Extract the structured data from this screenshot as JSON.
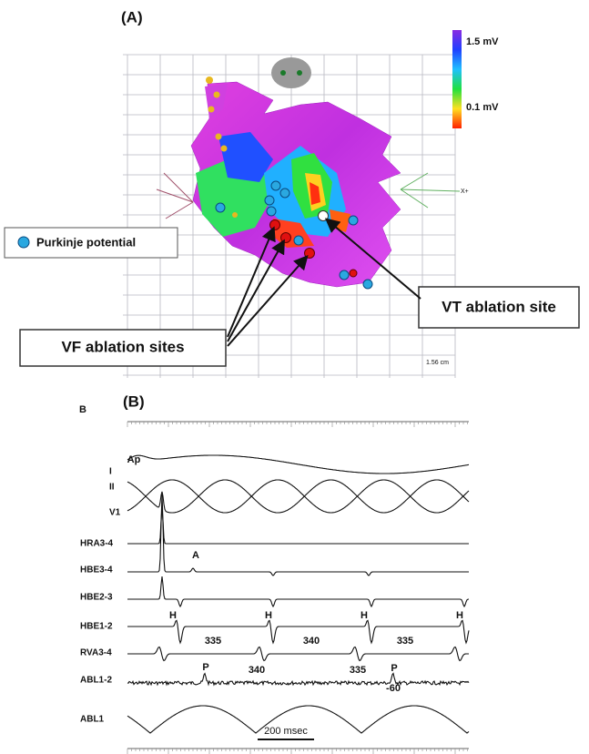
{
  "panel_a": {
    "label": "(A)",
    "colorbar": {
      "max": "1.5 mV",
      "min": "0.1 mV"
    },
    "legend": "Purkinje potential",
    "callouts": [
      "VT ablation site",
      "VF ablation sites"
    ],
    "scale": "1.56 cm",
    "axis": "X+"
  },
  "panel_b": {
    "side_label": "B",
    "label": "(B)",
    "channels": [
      "I",
      "II",
      "V1",
      "HRA3-4",
      "HBE3-4",
      "HBE2-3",
      "HBE1-2",
      "RVA3-4",
      "ABL1-2",
      "ABL1"
    ],
    "annotations": [
      "Ap",
      "A",
      "H",
      "H",
      "H",
      "H",
      "335",
      "340",
      "335",
      "P",
      "340",
      "335",
      "P",
      "-60"
    ],
    "scale_bar": "200 msec"
  }
}
